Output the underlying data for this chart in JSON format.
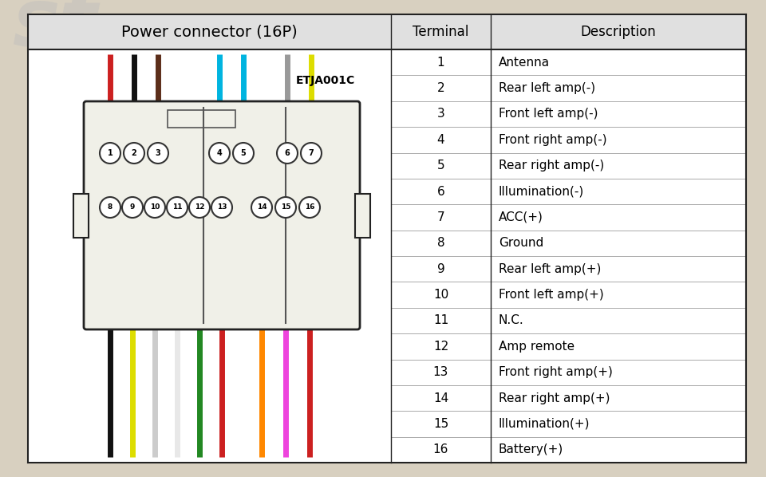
{
  "title_left": "Power connector (16P)",
  "col2_header": "Terminal",
  "col3_header": "Description",
  "code_label": "ETJA001C",
  "terminals": [
    1,
    2,
    3,
    4,
    5,
    6,
    7,
    8,
    9,
    10,
    11,
    12,
    13,
    14,
    15,
    16
  ],
  "descriptions": [
    "Antenna",
    "Rear left amp(-)",
    "Front left amp(-)",
    "Front right amp(-)",
    "Rear right amp(-)",
    "Illumination(-)",
    "ACC(+)",
    "Ground",
    "Rear left amp(+)",
    "Front left amp(+)",
    "N.C.",
    "Amp remote",
    "Front right amp(+)",
    "Rear right amp(+)",
    "Illumination(+)",
    "Battery(+)"
  ],
  "top_wire_colors": [
    "#cc2020",
    "#111111",
    "#5c2e1a",
    "#00b4e0",
    "#00b4e0",
    "#999999",
    "#dddd00"
  ],
  "bottom_wire_colors": [
    "#111111",
    "#dddd00",
    "#cccccc",
    "#e8e8e8",
    "#228822",
    "#cc2020",
    "#ff8800",
    "#ee44dd",
    "#cc2020"
  ],
  "bg_color": "#d8d0c0",
  "table_bg": "#ffffff",
  "border_color": "#222222",
  "header_bg": "#e0e0e0",
  "connector_bg": "#f0f0e8",
  "connector_border": "#222222"
}
